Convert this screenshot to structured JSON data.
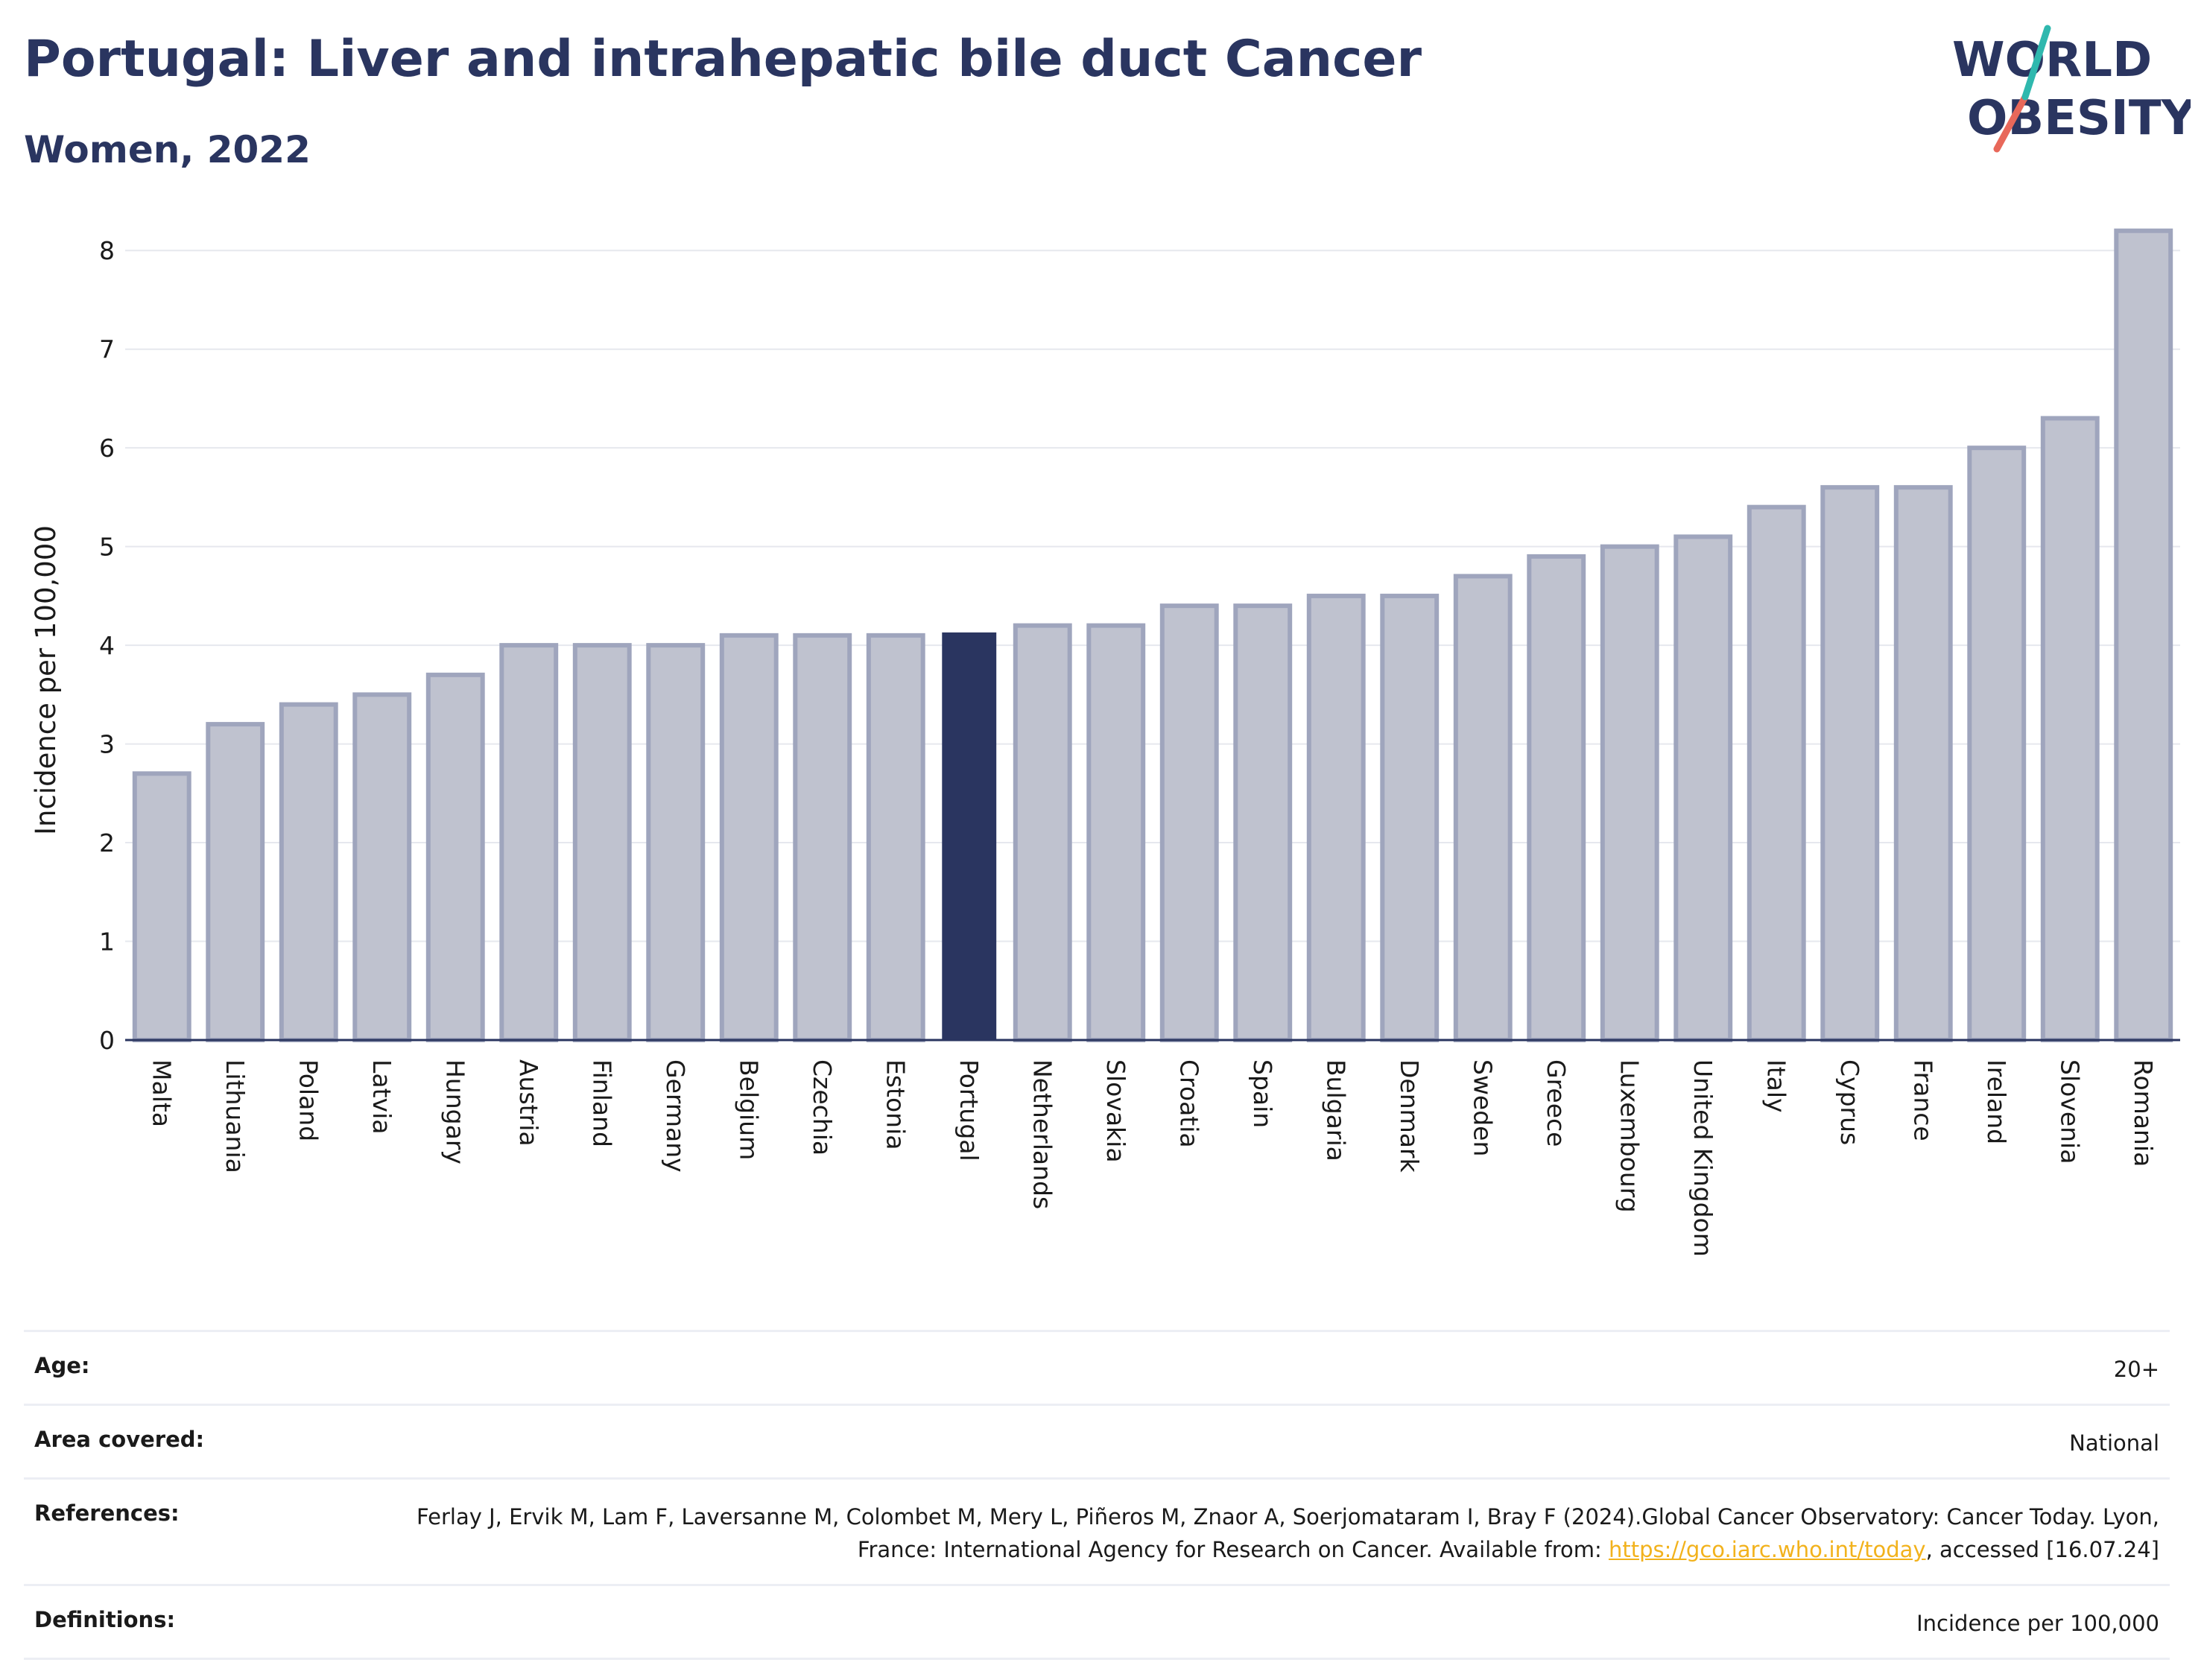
{
  "header": {
    "title": "Portugal: Liver and intrahepatic bile duct Cancer",
    "subtitle": "Women, 2022"
  },
  "logo": {
    "line1": "WORLD",
    "line2": "OBESITY"
  },
  "colors": {
    "highlight": "#2a3560",
    "bar": "#bfc2cf",
    "bar_stroke": "#9fa5bd",
    "title": "#2a3560",
    "link": "#f2b21c"
  },
  "chart_data": {
    "type": "bar",
    "categories": [
      "Malta",
      "Lithuania",
      "Poland",
      "Latvia",
      "Hungary",
      "Austria",
      "Finland",
      "Germany",
      "Belgium",
      "Czechia",
      "Estonia",
      "Portugal",
      "Netherlands",
      "Slovakia",
      "Croatia",
      "Spain",
      "Bulgaria",
      "Denmark",
      "Sweden",
      "Greece",
      "Luxembourg",
      "United Kingdom",
      "Italy",
      "Cyprus",
      "France",
      "Ireland",
      "Slovenia",
      "Romania"
    ],
    "values": [
      2.7,
      3.2,
      3.4,
      3.5,
      3.7,
      4.0,
      4.0,
      4.0,
      4.1,
      4.1,
      4.1,
      4.13,
      4.2,
      4.2,
      4.4,
      4.4,
      4.5,
      4.5,
      4.7,
      4.9,
      5.0,
      5.1,
      5.4,
      5.6,
      5.6,
      6.0,
      6.3,
      8.2
    ],
    "highlight": "Portugal",
    "ylabel": "Incidence per 100,000",
    "xlabel": "",
    "ylim": [
      0,
      8.5
    ],
    "yticks": [
      0,
      1,
      2,
      3,
      4,
      5,
      6,
      7,
      8
    ],
    "grid": true
  },
  "meta": [
    {
      "key": "Age:",
      "value": "20+"
    },
    {
      "key": "Area covered:",
      "value": "National"
    },
    {
      "key": "References:",
      "value_pre": "Ferlay J, Ervik M, Lam F, Laversanne M, Colombet M, Mery L, Piñeros M, Znaor A, Soerjomataram I, Bray F (2024).Global Cancer Observatory: Cancer Today. Lyon, France: International Agency for Research on Cancer. Available from: ",
      "link": "https://gco.iarc.who.int/today",
      "value_post": ", accessed [16.07.24]"
    },
    {
      "key": "Definitions:",
      "value": "Incidence per 100,000"
    }
  ]
}
